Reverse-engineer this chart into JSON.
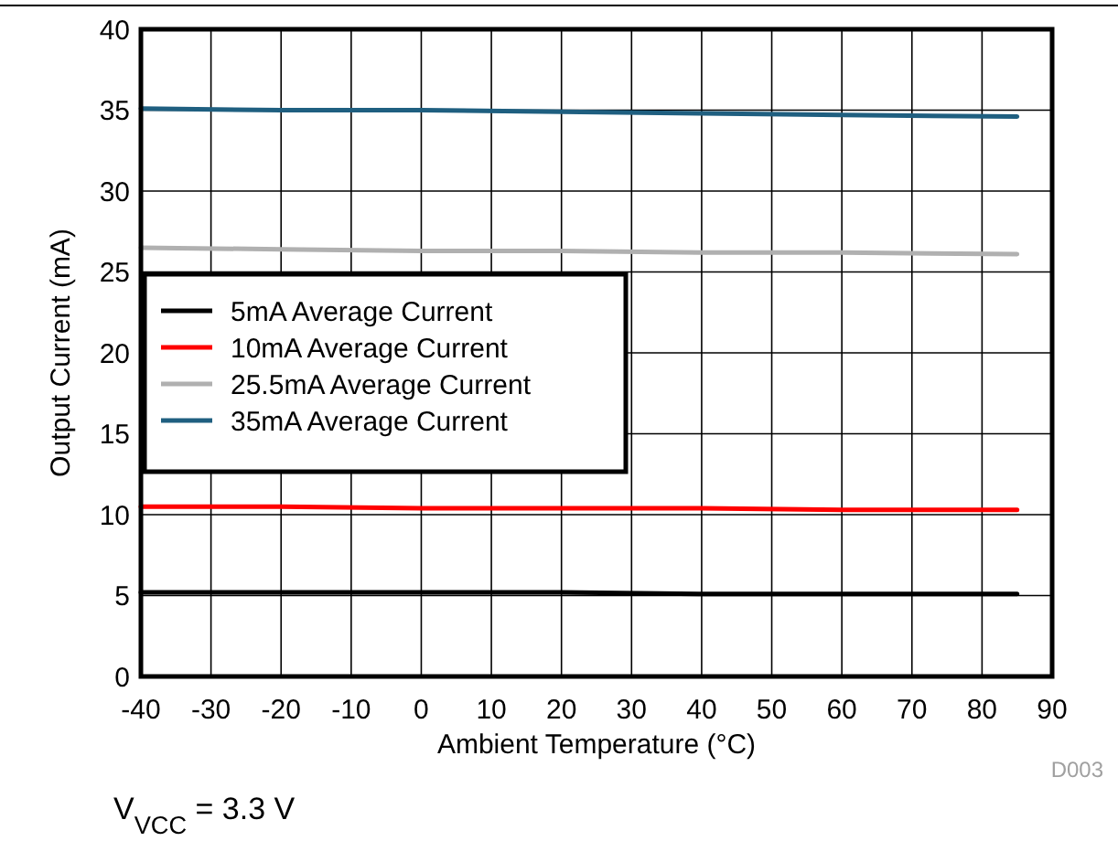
{
  "chart_data": {
    "type": "line",
    "xlabel": "Ambient Temperature (°C)",
    "ylabel": "Output Current  (mA)",
    "x": [
      -40,
      -20,
      0,
      20,
      40,
      60,
      85
    ],
    "series": [
      {
        "name": "5mA Average Current",
        "color": "#000000",
        "values": [
          5.2,
          5.2,
          5.2,
          5.2,
          5.1,
          5.1,
          5.1
        ]
      },
      {
        "name": "10mA Average Current",
        "color": "#ff0000",
        "values": [
          10.5,
          10.5,
          10.4,
          10.4,
          10.4,
          10.3,
          10.3
        ]
      },
      {
        "name": "25.5mA Average Current",
        "color": "#b0b0b0",
        "values": [
          26.5,
          26.4,
          26.3,
          26.3,
          26.2,
          26.2,
          26.1
        ]
      },
      {
        "name": "35mA Average Current",
        "color": "#1f5f80",
        "values": [
          35.1,
          35.0,
          35.0,
          34.9,
          34.8,
          34.7,
          34.6
        ]
      }
    ],
    "xlim": [
      -40,
      90
    ],
    "xticks": [
      -40,
      -30,
      -20,
      -10,
      0,
      10,
      20,
      30,
      40,
      50,
      60,
      70,
      80,
      90
    ],
    "ylim": [
      0,
      40
    ],
    "yticks": [
      0,
      5,
      10,
      15,
      20,
      25,
      30,
      35,
      40
    ],
    "grid": true,
    "legend": "left",
    "marker": "none",
    "line_style": "solid",
    "annotations": [
      "D003",
      "V$_{VCC}$ = 3.3 V"
    ]
  }
}
